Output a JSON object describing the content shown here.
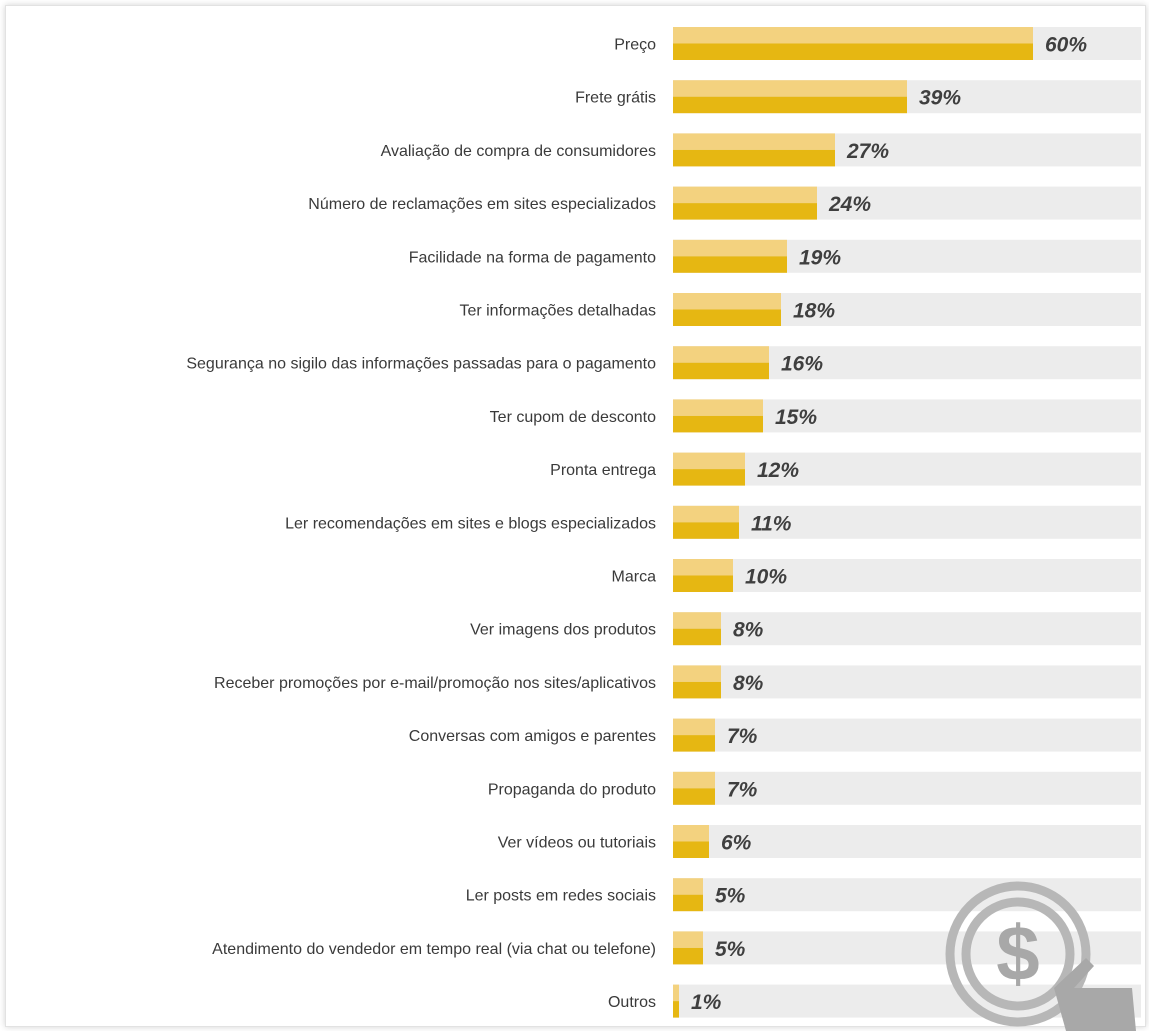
{
  "chart_data": {
    "type": "bar",
    "orientation": "horizontal",
    "unit": "%",
    "xlim": [
      0,
      78
    ],
    "colors": {
      "bar_light": "#f3d27f",
      "bar_dark": "#e6b712",
      "track": "#ececec",
      "label": "#3a3a3a",
      "value": "#3f3f3f"
    },
    "categories": [
      "Preço",
      "Frete grátis",
      "Avaliação de compra de consumidores",
      "Número de reclamações em sites especializados",
      "Facilidade na forma de pagamento",
      "Ter informações detalhadas",
      "Segurança no sigilo das informações passadas para o pagamento",
      "Ter cupom de desconto",
      "Pronta entrega",
      "Ler recomendações em sites e blogs especializados",
      "Marca",
      "Ver imagens dos produtos",
      "Receber promoções por e-mail/promoção nos sites/aplicativos",
      "Conversas com amigos e parentes",
      "Propaganda do produto",
      "Ver vídeos ou tutoriais",
      "Ler posts em redes sociais",
      "Atendimento do vendedor em tempo real (via chat ou telefone)",
      "Outros"
    ],
    "values": [
      60,
      39,
      27,
      24,
      19,
      18,
      16,
      15,
      12,
      11,
      10,
      8,
      8,
      7,
      7,
      6,
      5,
      5,
      1
    ],
    "value_labels": [
      "60%",
      "39%",
      "27%",
      "24%",
      "19%",
      "18%",
      "16%",
      "15%",
      "12%",
      "11%",
      "10%",
      "8%",
      "8%",
      "7%",
      "7%",
      "6%",
      "5%",
      "5%",
      "1%"
    ]
  },
  "watermark": {
    "icon": "dollar-coin-click-icon",
    "color": "#a9a9a9"
  }
}
